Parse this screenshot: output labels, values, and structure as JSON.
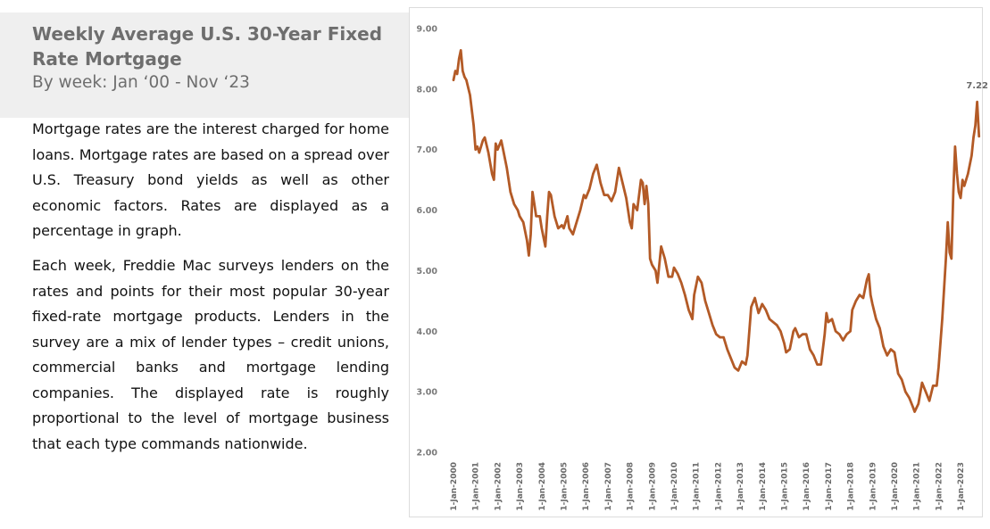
{
  "header": {
    "title": "Weekly Average U.S. 30-Year Fixed Rate Mortgage",
    "subtitle": "By week: Jan ‘00 - Nov ‘23"
  },
  "description": [
    "Mortgage rates are the interest charged for home loans. Mortgage rates are based on a spread over U.S. Treasury bond yields as well as other economic factors. Rates are displayed as a percentage in graph.",
    "Each week, Freddie Mac surveys lenders on the rates and points for their most popular 30-year fixed-rate mortgage products. Lenders in the survey are a mix of lender types – credit unions, commercial banks and mortgage lending companies. The displayed rate is roughly proportional to the level of mortgage business that each type commands nationwide."
  ],
  "chart_data": {
    "type": "line",
    "title": "",
    "xlabel": "",
    "ylabel": "",
    "ylim": [
      2.0,
      9.0
    ],
    "xlim": [
      2000.0,
      2023.95
    ],
    "grid": false,
    "legend": "none",
    "line_color": "#b35a26",
    "y_ticks": [
      "2.00",
      "3.00",
      "4.00",
      "5.00",
      "6.00",
      "7.00",
      "8.00",
      "9.00"
    ],
    "x_ticks": [
      "1-Jan-2000",
      "1-Jan-2001",
      "1-Jan-2002",
      "1-Jan-2003",
      "1-Jan-2004",
      "1-Jan-2005",
      "1-Jan-2006",
      "1-Jan-2007",
      "1-Jan-2008",
      "1-Jan-2009",
      "1-Jan-2010",
      "1-Jan-2011",
      "1-Jan-2012",
      "1-Jan-2013",
      "1-Jan-2014",
      "1-Jan-2015",
      "1-Jan-2016",
      "1-Jan-2017",
      "1-Jan-2018",
      "1-Jan-2019",
      "1-Jan-2020",
      "1-Jan-2021",
      "1-Jan-2022",
      "1-Jan-2023"
    ],
    "end_label": "7.22",
    "series": [
      {
        "points": [
          [
            "2000-01-01",
            8.15
          ],
          [
            "2000-02-01",
            8.3
          ],
          [
            "2000-03-01",
            8.25
          ],
          [
            "2000-04-01",
            8.5
          ],
          [
            "2000-05-01",
            8.64
          ],
          [
            "2000-06-01",
            8.3
          ],
          [
            "2000-07-01",
            8.2
          ],
          [
            "2000-08-01",
            8.15
          ],
          [
            "2000-10-01",
            7.9
          ],
          [
            "2000-12-01",
            7.4
          ],
          [
            "2001-01-01",
            7.0
          ],
          [
            "2001-02-01",
            7.05
          ],
          [
            "2001-03-01",
            6.95
          ],
          [
            "2001-05-01",
            7.15
          ],
          [
            "2001-06-01",
            7.2
          ],
          [
            "2001-08-01",
            6.95
          ],
          [
            "2001-10-01",
            6.6
          ],
          [
            "2001-11-01",
            6.5
          ],
          [
            "2001-12-01",
            7.1
          ],
          [
            "2002-01-01",
            7.0
          ],
          [
            "2002-03-01",
            7.15
          ],
          [
            "2002-04-01",
            7.0
          ],
          [
            "2002-06-01",
            6.7
          ],
          [
            "2002-08-01",
            6.3
          ],
          [
            "2002-10-01",
            6.1
          ],
          [
            "2002-12-01",
            6.0
          ],
          [
            "2003-01-01",
            5.9
          ],
          [
            "2003-03-01",
            5.8
          ],
          [
            "2003-05-01",
            5.5
          ],
          [
            "2003-06-01",
            5.25
          ],
          [
            "2003-07-01",
            5.6
          ],
          [
            "2003-08-01",
            6.3
          ],
          [
            "2003-09-01",
            6.1
          ],
          [
            "2003-10-01",
            5.9
          ],
          [
            "2003-12-01",
            5.9
          ],
          [
            "2004-01-01",
            5.7
          ],
          [
            "2004-03-01",
            5.4
          ],
          [
            "2004-04-01",
            5.9
          ],
          [
            "2004-05-01",
            6.3
          ],
          [
            "2004-06-01",
            6.25
          ],
          [
            "2004-08-01",
            5.9
          ],
          [
            "2004-10-01",
            5.7
          ],
          [
            "2004-12-01",
            5.75
          ],
          [
            "2005-01-01",
            5.7
          ],
          [
            "2005-03-01",
            5.9
          ],
          [
            "2005-04-01",
            5.7
          ],
          [
            "2005-06-01",
            5.6
          ],
          [
            "2005-08-01",
            5.8
          ],
          [
            "2005-10-01",
            6.0
          ],
          [
            "2005-12-01",
            6.25
          ],
          [
            "2006-01-01",
            6.2
          ],
          [
            "2006-03-01",
            6.35
          ],
          [
            "2006-05-01",
            6.6
          ],
          [
            "2006-07-01",
            6.75
          ],
          [
            "2006-09-01",
            6.45
          ],
          [
            "2006-11-01",
            6.25
          ],
          [
            "2007-01-01",
            6.25
          ],
          [
            "2007-03-01",
            6.15
          ],
          [
            "2007-05-01",
            6.3
          ],
          [
            "2007-07-01",
            6.7
          ],
          [
            "2007-09-01",
            6.45
          ],
          [
            "2007-11-01",
            6.2
          ],
          [
            "2008-01-01",
            5.8
          ],
          [
            "2008-02-01",
            5.7
          ],
          [
            "2008-03-01",
            6.1
          ],
          [
            "2008-05-01",
            6.0
          ],
          [
            "2008-07-01",
            6.5
          ],
          [
            "2008-08-01",
            6.45
          ],
          [
            "2008-09-01",
            6.1
          ],
          [
            "2008-10-01",
            6.4
          ],
          [
            "2008-11-01",
            6.1
          ],
          [
            "2008-12-01",
            5.2
          ],
          [
            "2009-01-01",
            5.1
          ],
          [
            "2009-03-01",
            5.0
          ],
          [
            "2009-04-01",
            4.8
          ],
          [
            "2009-06-01",
            5.4
          ],
          [
            "2009-08-01",
            5.2
          ],
          [
            "2009-10-01",
            4.9
          ],
          [
            "2009-12-01",
            4.9
          ],
          [
            "2010-01-01",
            5.05
          ],
          [
            "2010-03-01",
            4.95
          ],
          [
            "2010-05-01",
            4.8
          ],
          [
            "2010-07-01",
            4.6
          ],
          [
            "2010-09-01",
            4.35
          ],
          [
            "2010-11-01",
            4.2
          ],
          [
            "2010-12-01",
            4.6
          ],
          [
            "2011-01-01",
            4.75
          ],
          [
            "2011-02-01",
            4.9
          ],
          [
            "2011-04-01",
            4.8
          ],
          [
            "2011-06-01",
            4.5
          ],
          [
            "2011-08-01",
            4.3
          ],
          [
            "2011-10-01",
            4.1
          ],
          [
            "2011-12-01",
            3.95
          ],
          [
            "2012-02-01",
            3.9
          ],
          [
            "2012-04-01",
            3.9
          ],
          [
            "2012-06-01",
            3.7
          ],
          [
            "2012-08-01",
            3.55
          ],
          [
            "2012-10-01",
            3.4
          ],
          [
            "2012-12-01",
            3.35
          ],
          [
            "2013-02-01",
            3.5
          ],
          [
            "2013-04-01",
            3.45
          ],
          [
            "2013-05-01",
            3.6
          ],
          [
            "2013-07-01",
            4.4
          ],
          [
            "2013-09-01",
            4.55
          ],
          [
            "2013-11-01",
            4.3
          ],
          [
            "2014-01-01",
            4.45
          ],
          [
            "2014-03-01",
            4.35
          ],
          [
            "2014-05-01",
            4.2
          ],
          [
            "2014-07-01",
            4.15
          ],
          [
            "2014-09-01",
            4.1
          ],
          [
            "2014-11-01",
            4.0
          ],
          [
            "2015-01-01",
            3.8
          ],
          [
            "2015-02-01",
            3.65
          ],
          [
            "2015-04-01",
            3.7
          ],
          [
            "2015-06-01",
            4.0
          ],
          [
            "2015-07-01",
            4.05
          ],
          [
            "2015-09-01",
            3.9
          ],
          [
            "2015-11-01",
            3.95
          ],
          [
            "2016-01-01",
            3.95
          ],
          [
            "2016-03-01",
            3.7
          ],
          [
            "2016-05-01",
            3.6
          ],
          [
            "2016-07-01",
            3.45
          ],
          [
            "2016-09-01",
            3.45
          ],
          [
            "2016-11-01",
            3.95
          ],
          [
            "2016-12-01",
            4.3
          ],
          [
            "2017-01-01",
            4.15
          ],
          [
            "2017-03-01",
            4.2
          ],
          [
            "2017-05-01",
            4.0
          ],
          [
            "2017-07-01",
            3.95
          ],
          [
            "2017-09-01",
            3.85
          ],
          [
            "2017-11-01",
            3.95
          ],
          [
            "2018-01-01",
            4.0
          ],
          [
            "2018-02-01",
            4.35
          ],
          [
            "2018-04-01",
            4.5
          ],
          [
            "2018-06-01",
            4.6
          ],
          [
            "2018-08-01",
            4.55
          ],
          [
            "2018-10-01",
            4.85
          ],
          [
            "2018-11-01",
            4.94
          ],
          [
            "2018-12-01",
            4.6
          ],
          [
            "2019-01-01",
            4.45
          ],
          [
            "2019-03-01",
            4.2
          ],
          [
            "2019-05-01",
            4.05
          ],
          [
            "2019-07-01",
            3.75
          ],
          [
            "2019-09-01",
            3.6
          ],
          [
            "2019-11-01",
            3.7
          ],
          [
            "2020-01-01",
            3.65
          ],
          [
            "2020-03-01",
            3.3
          ],
          [
            "2020-05-01",
            3.2
          ],
          [
            "2020-07-01",
            3.0
          ],
          [
            "2020-09-01",
            2.9
          ],
          [
            "2020-11-01",
            2.75
          ],
          [
            "2020-12-01",
            2.67
          ],
          [
            "2021-02-01",
            2.8
          ],
          [
            "2021-04-01",
            3.15
          ],
          [
            "2021-06-01",
            3.0
          ],
          [
            "2021-08-01",
            2.85
          ],
          [
            "2021-10-01",
            3.1
          ],
          [
            "2021-12-01",
            3.1
          ],
          [
            "2022-01-01",
            3.4
          ],
          [
            "2022-03-01",
            4.2
          ],
          [
            "2022-05-01",
            5.2
          ],
          [
            "2022-06-01",
            5.8
          ],
          [
            "2022-07-01",
            5.3
          ],
          [
            "2022-08-01",
            5.2
          ],
          [
            "2022-09-01",
            6.3
          ],
          [
            "2022-10-01",
            7.05
          ],
          [
            "2022-11-01",
            6.6
          ],
          [
            "2022-12-01",
            6.3
          ],
          [
            "2023-01-01",
            6.2
          ],
          [
            "2023-02-01",
            6.5
          ],
          [
            "2023-03-01",
            6.4
          ],
          [
            "2023-05-01",
            6.6
          ],
          [
            "2023-07-01",
            6.9
          ],
          [
            "2023-08-01",
            7.2
          ],
          [
            "2023-09-01",
            7.4
          ],
          [
            "2023-10-01",
            7.79
          ],
          [
            "2023-11-01",
            7.22
          ]
        ]
      }
    ]
  }
}
